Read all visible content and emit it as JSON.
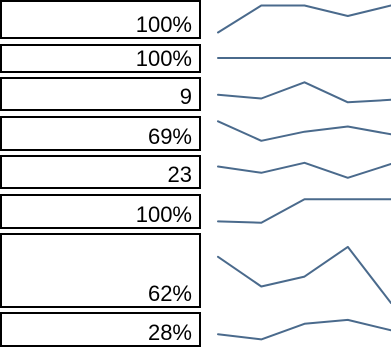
{
  "sparkline_color": "#4a6a8c",
  "rows": [
    {
      "value": "100%",
      "spark": [
        0.05,
        0.95,
        0.95,
        0.6,
        0.95
      ]
    },
    {
      "value": "100%",
      "spark": [
        0.5,
        0.5,
        0.5,
        0.5,
        0.5
      ]
    },
    {
      "value": "9",
      "spark": [
        0.45,
        0.3,
        0.95,
        0.15,
        0.25
      ]
    },
    {
      "value": "69%",
      "spark": [
        0.95,
        0.2,
        0.55,
        0.75,
        0.45
      ]
    },
    {
      "value": "23",
      "spark": [
        0.7,
        0.45,
        0.85,
        0.25,
        0.8
      ]
    },
    {
      "value": "100%",
      "spark": [
        0.1,
        0.05,
        0.95,
        0.95,
        0.95
      ]
    },
    {
      "value": "62%",
      "spark": [
        0.7,
        0.25,
        0.4,
        0.85,
        0.0
      ]
    },
    {
      "value": "28%",
      "spark": [
        0.3,
        0.1,
        0.7,
        0.85,
        0.45
      ]
    }
  ]
}
